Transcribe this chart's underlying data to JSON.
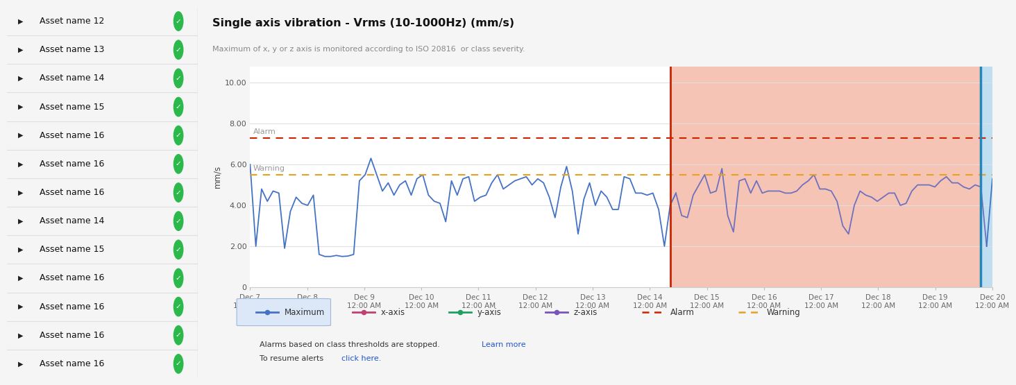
{
  "title": "Single axis vibration - Vrms (10-1000Hz) (mm/s)",
  "subtitle": "Maximum of x, y or z axis is monitored according to ISO 20816  or class severity.",
  "ylabel": "mm/s",
  "alarm_level": 7.3,
  "warning_level": 5.5,
  "ylim": [
    0,
    10.8
  ],
  "yticks": [
    0,
    2.0,
    4.0,
    6.0,
    8.0,
    10.0
  ],
  "x_labels": [
    "Dec 7\n12:00 AM",
    "Dec 8\n12:00 AM",
    "Dec 9\n12:00 AM",
    "Dec 10\n12:00 AM",
    "Dec 11\n12:00 AM",
    "Dec 12\n12:00 AM",
    "Dec 13\n12:00 AM",
    "Dec 14\n12:00 AM",
    "Dec 15\n12:00 AM",
    "Dec 16\n12:00 AM",
    "Dec 17\n12:00 AM",
    "Dec 18\n12:00 AM",
    "Dec 19\n12:00 AM",
    "Dec 20\n12:00 AM"
  ],
  "alarm_label": "Alarm",
  "warning_label": "Warning",
  "alarm_color": "#cc2200",
  "warning_color": "#e8a020",
  "line_color_normal": "#4472c4",
  "line_color_alarm": "#7070c0",
  "bg_alarm_color": "#f5c4b4",
  "bg_current_color": "#bfdef0",
  "chart_bg": "#ffffff",
  "left_panel_bg": "#ffffff",
  "fig_bg": "#f5f5f5",
  "asset_names": [
    "Asset name 12",
    "Asset name 13",
    "Asset name 14",
    "Asset name 15",
    "Asset name 16",
    "Asset name 16",
    "Asset name 16",
    "Asset name 14",
    "Asset name 15",
    "Asset name 16",
    "Asset name 16",
    "Asset name 16",
    "Asset name 16"
  ],
  "note_text1": "Alarms based on class thresholds are stopped. ",
  "note_text1b": "Learn more",
  "note_text2": "To resume alerts ",
  "note_text2b": "click here.",
  "vibration_data_normal": [
    6.0,
    2.0,
    4.8,
    4.2,
    4.7,
    4.6,
    1.9,
    3.7,
    4.4,
    4.1,
    4.0,
    4.5,
    1.6,
    1.5,
    1.5,
    1.55,
    1.5,
    1.52,
    1.6,
    5.2,
    5.5,
    6.3,
    5.5,
    4.7,
    5.1,
    4.5,
    5.0,
    5.2,
    4.5,
    5.3,
    5.5,
    4.5,
    4.2,
    4.1,
    3.2,
    5.2,
    4.5,
    5.3,
    5.4,
    4.2,
    4.4,
    4.5,
    5.1,
    5.5,
    4.8,
    5.0,
    5.2,
    5.3,
    5.4,
    5.0,
    5.3,
    5.1,
    4.4,
    3.4,
    4.9,
    5.9,
    4.7,
    2.6,
    4.3,
    5.1,
    4.0,
    4.7,
    4.4,
    3.8,
    3.8,
    5.4,
    5.3,
    4.6,
    4.6,
    4.5,
    4.6,
    3.8,
    2.0,
    4.0
  ],
  "vibration_data_alarm": [
    4.6,
    3.5,
    3.4,
    4.5,
    5.0,
    5.5,
    4.6,
    4.7,
    5.8,
    3.5,
    2.7,
    5.2,
    5.3,
    4.6,
    5.2,
    4.6,
    4.7,
    4.7,
    4.7,
    4.6,
    4.6,
    4.7,
    5.0,
    5.2,
    5.5,
    4.8,
    4.8,
    4.7,
    4.2,
    3.0,
    2.6,
    4.0,
    4.7,
    4.5,
    4.4,
    4.2,
    4.4,
    4.6,
    4.6,
    4.0,
    4.1,
    4.7,
    5.0,
    5.0,
    5.0,
    4.9,
    5.2,
    5.4,
    5.1,
    5.1,
    4.9,
    4.8,
    5.0,
    4.9
  ],
  "vibration_data_current": [
    2.0,
    5.3
  ]
}
